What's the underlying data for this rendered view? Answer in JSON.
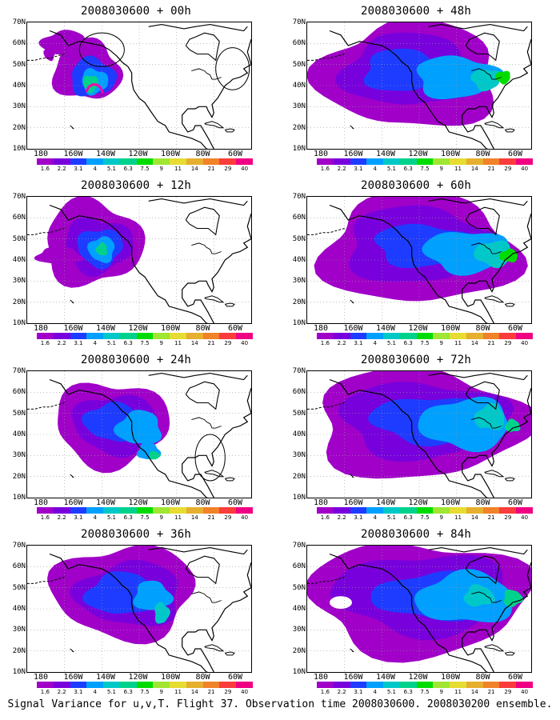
{
  "panels": [
    {
      "title": "2008030600 + 00h",
      "circles": 2,
      "dots": true
    },
    {
      "title": "2008030600 + 12h",
      "circles": 0
    },
    {
      "title": "2008030600 + 24h",
      "circles": 1
    },
    {
      "title": "2008030600 + 36h",
      "circles": 0
    },
    {
      "title": "2008030600 + 48h",
      "circles": 0
    },
    {
      "title": "2008030600 + 60h",
      "circles": 0
    },
    {
      "title": "2008030600 + 72h",
      "circles": 0
    },
    {
      "title": "2008030600 + 84h",
      "circles": 0
    }
  ],
  "lat_labels": [
    "70N",
    "60N",
    "50N",
    "40N",
    "30N",
    "20N",
    "10N"
  ],
  "lon_labels": [
    "180",
    "160W",
    "140W",
    "120W",
    "100W",
    "80W",
    "60W"
  ],
  "colorbar": {
    "labels": [
      "1.6",
      "2.2",
      "3.1",
      "4",
      "5.1",
      "6.3",
      "7.5",
      "9",
      "11",
      "14",
      "21",
      "29",
      "40"
    ],
    "colors": [
      "#a000c8",
      "#7800dc",
      "#1e3cff",
      "#00a0ff",
      "#00c8c8",
      "#00d28c",
      "#00dc00",
      "#a0e632",
      "#e6dc32",
      "#e6af2d",
      "#f08228",
      "#fa3c3c",
      "#f00082"
    ]
  },
  "caption": "Signal Variance for u,v,T. Flight 37. Observation time 2008030600. 2008030200 ensemble."
}
